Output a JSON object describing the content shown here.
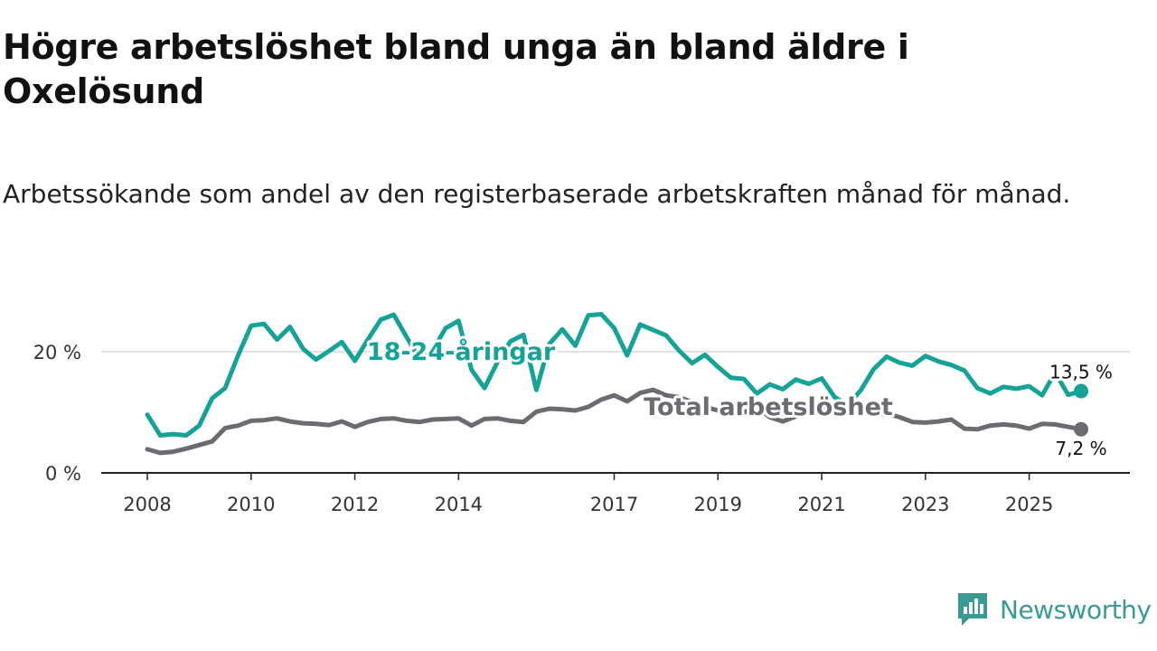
{
  "title": "Högre arbetslöshet bland unga än bland äldre i Oxelösund",
  "subtitle": "Arbetssökande som andel av den registerbaserade arbetskraften månad för månad.",
  "brand": {
    "name": "Newsworthy",
    "icon": "newsworthy-logo-icon",
    "color": "#3a9a94"
  },
  "chart_data": {
    "type": "line",
    "title": "Högre arbetslöshet bland unga än bland äldre i Oxelösund",
    "xlabel": "",
    "ylabel": "",
    "xlim": [
      2008.0,
      2026.2
    ],
    "ylim": [
      0,
      27
    ],
    "y_ticks": [
      {
        "value": 0,
        "label": "0 %"
      },
      {
        "value": 20,
        "label": "20 %"
      }
    ],
    "x_ticks": [
      {
        "value": 2008,
        "label": "2008"
      },
      {
        "value": 2010,
        "label": "2010"
      },
      {
        "value": 2012,
        "label": "2012"
      },
      {
        "value": 2014,
        "label": "2014"
      },
      {
        "value": 2017,
        "label": "2017"
      },
      {
        "value": 2019,
        "label": "2019"
      },
      {
        "value": 2021,
        "label": "2021"
      },
      {
        "value": 2023,
        "label": "2023"
      },
      {
        "value": 2025,
        "label": "2025"
      }
    ],
    "grid": "horizontal at 20",
    "series": [
      {
        "name": "Total arbetslöshet",
        "color": "#6e6a72",
        "label": "Total arbetslöshet",
        "end_label": "7,2 %",
        "points": [
          [
            2008.0,
            3.9
          ],
          [
            2008.25,
            3.3
          ],
          [
            2008.5,
            3.5
          ],
          [
            2008.75,
            4.0
          ],
          [
            2009.0,
            4.6
          ],
          [
            2009.25,
            5.2
          ],
          [
            2009.5,
            7.4
          ],
          [
            2009.75,
            7.8
          ],
          [
            2010.0,
            8.6
          ],
          [
            2010.25,
            8.7
          ],
          [
            2010.5,
            9.0
          ],
          [
            2010.75,
            8.5
          ],
          [
            2011.0,
            8.2
          ],
          [
            2011.25,
            8.1
          ],
          [
            2011.5,
            7.9
          ],
          [
            2011.75,
            8.5
          ],
          [
            2012.0,
            7.6
          ],
          [
            2012.25,
            8.4
          ],
          [
            2012.5,
            8.9
          ],
          [
            2012.75,
            9.0
          ],
          [
            2013.0,
            8.6
          ],
          [
            2013.25,
            8.4
          ],
          [
            2013.5,
            8.8
          ],
          [
            2013.75,
            8.9
          ],
          [
            2014.0,
            9.0
          ],
          [
            2014.25,
            7.8
          ],
          [
            2014.5,
            8.9
          ],
          [
            2014.75,
            9.0
          ],
          [
            2015.0,
            8.6
          ],
          [
            2015.25,
            8.4
          ],
          [
            2015.5,
            10.1
          ],
          [
            2015.75,
            10.6
          ],
          [
            2016.0,
            10.5
          ],
          [
            2016.25,
            10.3
          ],
          [
            2016.5,
            10.9
          ],
          [
            2016.75,
            12.1
          ],
          [
            2017.0,
            12.8
          ],
          [
            2017.25,
            11.8
          ],
          [
            2017.5,
            13.2
          ],
          [
            2017.75,
            13.7
          ],
          [
            2018.0,
            12.8
          ],
          [
            2018.25,
            12.5
          ],
          [
            2018.5,
            11.7
          ],
          [
            2018.75,
            10.9
          ],
          [
            2019.0,
            10.3
          ],
          [
            2019.25,
            9.8
          ],
          [
            2019.5,
            10.0
          ],
          [
            2019.75,
            10.8
          ],
          [
            2020.0,
            9.2
          ],
          [
            2020.25,
            8.5
          ],
          [
            2020.5,
            9.3
          ],
          [
            2020.75,
            10.1
          ],
          [
            2021.0,
            10.6
          ],
          [
            2021.25,
            10.4
          ],
          [
            2021.5,
            10.2
          ],
          [
            2021.75,
            9.9
          ],
          [
            2022.0,
            9.6
          ],
          [
            2022.25,
            9.8
          ],
          [
            2022.5,
            9.2
          ],
          [
            2022.75,
            8.4
          ],
          [
            2023.0,
            8.3
          ],
          [
            2023.25,
            8.5
          ],
          [
            2023.5,
            8.8
          ],
          [
            2023.75,
            7.3
          ],
          [
            2024.0,
            7.2
          ],
          [
            2024.25,
            7.8
          ],
          [
            2024.5,
            8.0
          ],
          [
            2024.75,
            7.8
          ],
          [
            2025.0,
            7.3
          ],
          [
            2025.25,
            8.1
          ],
          [
            2025.5,
            8.0
          ],
          [
            2025.75,
            7.6
          ],
          [
            2026.0,
            7.2
          ]
        ]
      },
      {
        "name": "18-24-åringar",
        "color": "#15a397",
        "label": "18-24-åringar",
        "end_label": "13,5 %",
        "points": [
          [
            2008.0,
            9.6
          ],
          [
            2008.25,
            6.2
          ],
          [
            2008.5,
            6.4
          ],
          [
            2008.75,
            6.2
          ],
          [
            2009.0,
            7.8
          ],
          [
            2009.25,
            12.3
          ],
          [
            2009.5,
            14.0
          ],
          [
            2009.75,
            19.4
          ],
          [
            2010.0,
            24.3
          ],
          [
            2010.25,
            24.6
          ],
          [
            2010.5,
            22.0
          ],
          [
            2010.75,
            24.1
          ],
          [
            2011.0,
            20.5
          ],
          [
            2011.25,
            18.7
          ],
          [
            2011.5,
            20.1
          ],
          [
            2011.75,
            21.6
          ],
          [
            2012.0,
            18.5
          ],
          [
            2012.25,
            22.0
          ],
          [
            2012.5,
            25.3
          ],
          [
            2012.75,
            26.1
          ],
          [
            2013.0,
            22.4
          ],
          [
            2013.25,
            18.8
          ],
          [
            2013.5,
            20.2
          ],
          [
            2013.75,
            23.9
          ],
          [
            2014.0,
            25.1
          ],
          [
            2014.25,
            17.0
          ],
          [
            2014.5,
            14.0
          ],
          [
            2014.75,
            18.3
          ],
          [
            2015.0,
            21.7
          ],
          [
            2015.25,
            22.8
          ],
          [
            2015.5,
            13.7
          ],
          [
            2015.75,
            21.3
          ],
          [
            2016.0,
            23.7
          ],
          [
            2016.25,
            21.0
          ],
          [
            2016.5,
            26.0
          ],
          [
            2016.75,
            26.2
          ],
          [
            2017.0,
            23.9
          ],
          [
            2017.25,
            19.4
          ],
          [
            2017.5,
            24.5
          ],
          [
            2017.75,
            23.6
          ],
          [
            2018.0,
            22.7
          ],
          [
            2018.25,
            20.2
          ],
          [
            2018.5,
            18.1
          ],
          [
            2018.75,
            19.5
          ],
          [
            2019.0,
            17.5
          ],
          [
            2019.25,
            15.7
          ],
          [
            2019.5,
            15.5
          ],
          [
            2019.75,
            13.1
          ],
          [
            2020.0,
            14.6
          ],
          [
            2020.25,
            13.8
          ],
          [
            2020.5,
            15.4
          ],
          [
            2020.75,
            14.7
          ],
          [
            2021.0,
            15.6
          ],
          [
            2021.25,
            12.5
          ],
          [
            2021.5,
            11.2
          ],
          [
            2021.75,
            13.6
          ],
          [
            2022.0,
            17.1
          ],
          [
            2022.25,
            19.2
          ],
          [
            2022.5,
            18.2
          ],
          [
            2022.75,
            17.7
          ],
          [
            2023.0,
            19.3
          ],
          [
            2023.25,
            18.4
          ],
          [
            2023.5,
            17.8
          ],
          [
            2023.75,
            16.9
          ],
          [
            2024.0,
            14.0
          ],
          [
            2024.25,
            13.1
          ],
          [
            2024.5,
            14.2
          ],
          [
            2024.75,
            13.9
          ],
          [
            2025.0,
            14.3
          ],
          [
            2025.25,
            12.8
          ],
          [
            2025.5,
            16.6
          ],
          [
            2025.75,
            12.9
          ],
          [
            2026.0,
            13.5
          ]
        ]
      }
    ]
  }
}
